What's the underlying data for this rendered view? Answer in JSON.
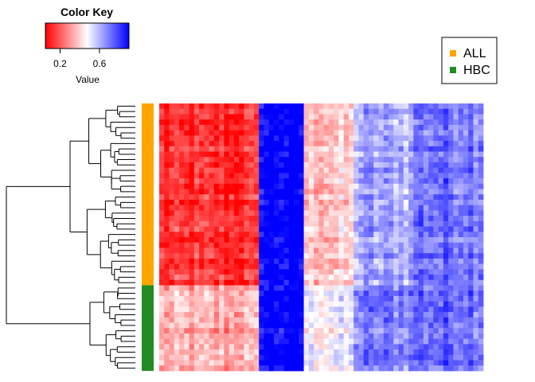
{
  "chart_data": {
    "type": "heatmap",
    "color_key": {
      "title": "Color Key",
      "xlabel": "Value",
      "ticks": [
        0.2,
        0.6
      ],
      "tick_labels": [
        "0.2",
        "0.6"
      ],
      "range": [
        0.05,
        0.9
      ],
      "colors": [
        "#ff0000",
        "#ffffff",
        "#0000ff"
      ]
    },
    "legend": {
      "position": "top-right",
      "items": [
        {
          "label": "ALL",
          "color": "#ffa500"
        },
        {
          "label": "HBC",
          "color": "#228b22"
        }
      ]
    },
    "groups": [
      {
        "name": "ALL",
        "n_rows": 34,
        "color": "#ffa500"
      },
      {
        "name": "HBC",
        "n_rows": 16,
        "color": "#228b22"
      }
    ],
    "column_blocks": [
      {
        "n_cols": 20,
        "ALL": 0.12,
        "HBC": 0.32
      },
      {
        "n_cols": 9,
        "ALL": 0.92,
        "HBC": 0.9
      },
      {
        "n_cols": 10,
        "ALL": 0.38,
        "HBC": 0.48
      },
      {
        "n_cols": 12,
        "ALL": 0.62,
        "HBC": 0.68
      },
      {
        "n_cols": 14,
        "ALL": 0.72,
        "HBC": 0.72
      }
    ],
    "dendrogram": "row clustering: ALL samples and HBC samples form two main clusters"
  }
}
